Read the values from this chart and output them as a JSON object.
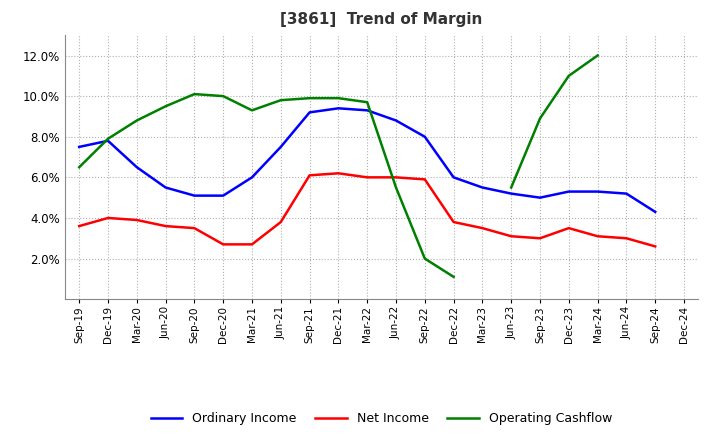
{
  "title": "[3861]  Trend of Margin",
  "x_labels": [
    "Sep-19",
    "Dec-19",
    "Mar-20",
    "Jun-20",
    "Sep-20",
    "Dec-20",
    "Mar-21",
    "Jun-21",
    "Sep-21",
    "Dec-21",
    "Mar-22",
    "Jun-22",
    "Sep-22",
    "Dec-22",
    "Mar-23",
    "Jun-23",
    "Sep-23",
    "Dec-23",
    "Mar-24",
    "Jun-24",
    "Sep-24",
    "Dec-24"
  ],
  "ordinary_income": [
    7.5,
    7.8,
    6.5,
    5.5,
    5.1,
    5.1,
    6.0,
    7.5,
    9.2,
    9.4,
    9.3,
    8.8,
    8.0,
    6.0,
    5.5,
    5.2,
    5.0,
    5.3,
    5.3,
    5.2,
    4.3,
    null
  ],
  "net_income": [
    3.6,
    4.0,
    3.9,
    3.6,
    3.5,
    2.7,
    2.7,
    3.8,
    6.1,
    6.2,
    6.0,
    6.0,
    5.9,
    3.8,
    3.5,
    3.1,
    3.0,
    3.5,
    3.1,
    3.0,
    2.6,
    null
  ],
  "operating_cashflow": [
    6.5,
    7.9,
    8.8,
    9.5,
    10.1,
    10.0,
    9.3,
    9.8,
    9.9,
    9.9,
    9.7,
    5.5,
    2.0,
    1.1,
    null,
    5.5,
    8.9,
    11.0,
    12.0,
    null,
    null,
    null
  ],
  "colors": {
    "ordinary_income": "#0000ff",
    "net_income": "#ff0000",
    "operating_cashflow": "#008000"
  },
  "ylim": [
    0,
    13
  ],
  "yticks": [
    2.0,
    4.0,
    6.0,
    8.0,
    10.0,
    12.0
  ],
  "background_color": "#ffffff",
  "grid_color": "#b0b0b0",
  "legend_labels": [
    "Ordinary Income",
    "Net Income",
    "Operating Cashflow"
  ]
}
